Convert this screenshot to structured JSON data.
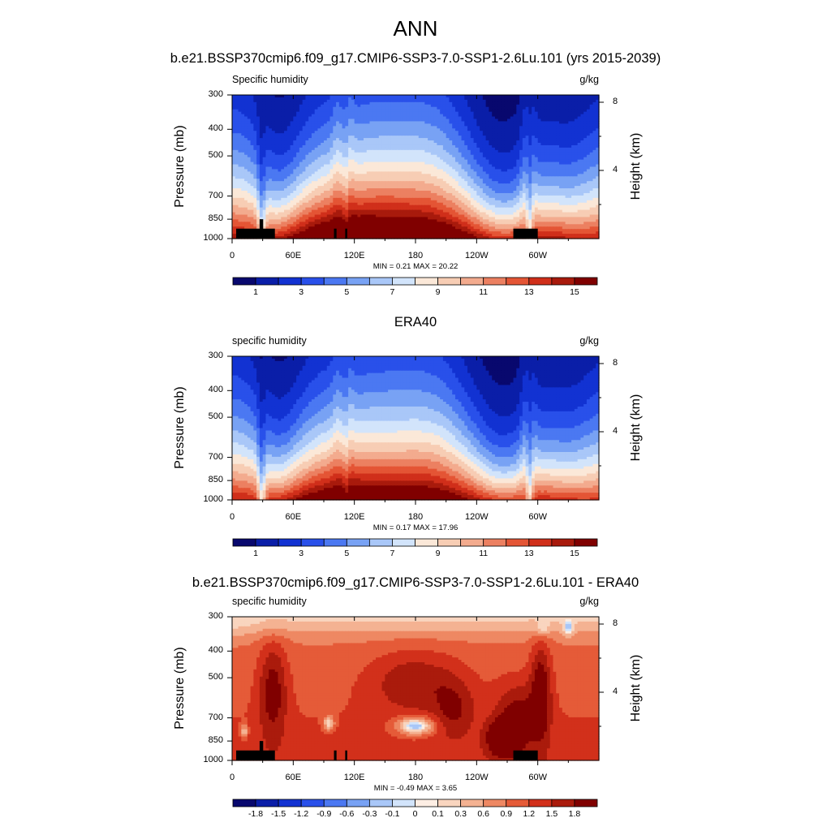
{
  "figure": {
    "title": "ANN",
    "subtitle": "b.e21.BSSP370cmip6.f09_g17.CMIP6-SSP3-7.0-SSP1-2.6Lu.101 (yrs 2015-2039)"
  },
  "chart_data": [
    {
      "type": "heatmap",
      "panel_title": "",
      "variable_label": "Specific humidity",
      "units": "g/kg",
      "xlabel": "",
      "ylabel": "Pressure (mb)",
      "ylabel_right": "Height (km)",
      "x_ticks": [
        "0",
        "60E",
        "120E",
        "180",
        "120W",
        "60W"
      ],
      "x_tick_values": [
        0,
        60,
        120,
        180,
        240,
        300
      ],
      "xlim": [
        0,
        360
      ],
      "y_ticks": [
        "300",
        "400",
        "500",
        "700",
        "850",
        "1000"
      ],
      "y_tick_values": [
        300,
        400,
        500,
        700,
        850,
        1000
      ],
      "ylim": [
        1000,
        300
      ],
      "right_ticks": [
        "8",
        "4"
      ],
      "right_tick_values": [
        8,
        4
      ],
      "min_max": "MIN =   0.21  MAX =  20.22",
      "min": 0.21,
      "max": 20.22,
      "colorbar_labels": [
        "1",
        "3",
        "5",
        "7",
        "9",
        "11",
        "13",
        "15"
      ],
      "colorbar_levels": [
        1,
        2,
        3,
        4,
        5,
        6,
        7,
        8,
        9,
        10,
        11,
        12,
        13,
        14,
        15
      ],
      "colors": [
        "#08086e",
        "#0a1ea8",
        "#1232d2",
        "#2950ea",
        "#4b78f2",
        "#78a2f4",
        "#a9c7f8",
        "#d2e4fb",
        "#fbe8d8",
        "#f7cdb4",
        "#f3ab8e",
        "#ec8061",
        "#e45535",
        "#d02f1a",
        "#a81a0c",
        "#800000"
      ],
      "diverging": false,
      "has_mask": true
    },
    {
      "type": "heatmap",
      "panel_title": "ERA40",
      "variable_label": "specific humidity",
      "units": "g/kg",
      "xlabel": "",
      "ylabel": "Pressure (mb)",
      "ylabel_right": "Height (km)",
      "x_ticks": [
        "0",
        "60E",
        "120E",
        "180",
        "120W",
        "60W"
      ],
      "x_tick_values": [
        0,
        60,
        120,
        180,
        240,
        300
      ],
      "xlim": [
        0,
        360
      ],
      "y_ticks": [
        "300",
        "400",
        "500",
        "700",
        "850",
        "1000"
      ],
      "y_tick_values": [
        300,
        400,
        500,
        700,
        850,
        1000
      ],
      "ylim": [
        1000,
        300
      ],
      "right_ticks": [
        "8",
        "4"
      ],
      "right_tick_values": [
        8,
        4
      ],
      "min_max": "MIN =   0.17  MAX =  17.96",
      "min": 0.17,
      "max": 17.96,
      "colorbar_labels": [
        "1",
        "3",
        "5",
        "7",
        "9",
        "11",
        "13",
        "15"
      ],
      "colorbar_levels": [
        1,
        2,
        3,
        4,
        5,
        6,
        7,
        8,
        9,
        10,
        11,
        12,
        13,
        14,
        15
      ],
      "colors": [
        "#08086e",
        "#0a1ea8",
        "#1232d2",
        "#2950ea",
        "#4b78f2",
        "#78a2f4",
        "#a9c7f8",
        "#d2e4fb",
        "#fbe8d8",
        "#f7cdb4",
        "#f3ab8e",
        "#ec8061",
        "#e45535",
        "#d02f1a",
        "#a81a0c",
        "#800000"
      ],
      "diverging": false,
      "has_mask": false
    },
    {
      "type": "heatmap",
      "panel_title": "b.e21.BSSP370cmip6.f09_g17.CMIP6-SSP3-7.0-SSP1-2.6Lu.101 - ERA40",
      "variable_label": "specific humidity",
      "units": "g/kg",
      "xlabel": "",
      "ylabel": "Pressure (mb)",
      "ylabel_right": "Height (km)",
      "x_ticks": [
        "0",
        "60E",
        "120E",
        "180",
        "120W",
        "60W"
      ],
      "x_tick_values": [
        0,
        60,
        120,
        180,
        240,
        300
      ],
      "xlim": [
        0,
        360
      ],
      "y_ticks": [
        "300",
        "400",
        "500",
        "700",
        "850",
        "1000"
      ],
      "y_tick_values": [
        300,
        400,
        500,
        700,
        850,
        1000
      ],
      "ylim": [
        1000,
        300
      ],
      "right_ticks": [
        "8",
        "4"
      ],
      "right_tick_values": [
        8,
        4
      ],
      "min_max": "MIN =  -0.49  MAX =   3.65",
      "min": -0.49,
      "max": 3.65,
      "colorbar_labels": [
        "-1.8",
        "-1.5",
        "-1.2",
        "-0.9",
        "-0.6",
        "-0.3",
        "-0.1",
        "0",
        "0.1",
        "0.3",
        "0.6",
        "0.9",
        "1.2",
        "1.5",
        "1.8"
      ],
      "colorbar_levels": [
        -1.8,
        -1.5,
        -1.2,
        -0.9,
        -0.6,
        -0.3,
        -0.1,
        0,
        0.1,
        0.3,
        0.6,
        0.9,
        1.2,
        1.5,
        1.8
      ],
      "colors": [
        "#08086e",
        "#0a1ea8",
        "#1232d2",
        "#2950ea",
        "#4b78f2",
        "#78a2f4",
        "#a9c7f8",
        "#d2e4fb",
        "#fdeee4",
        "#f9d5bf",
        "#f4b292",
        "#ee8863",
        "#e55b38",
        "#d2301b",
        "#aa1b0c",
        "#800000"
      ],
      "diverging": true,
      "has_mask": true
    }
  ]
}
